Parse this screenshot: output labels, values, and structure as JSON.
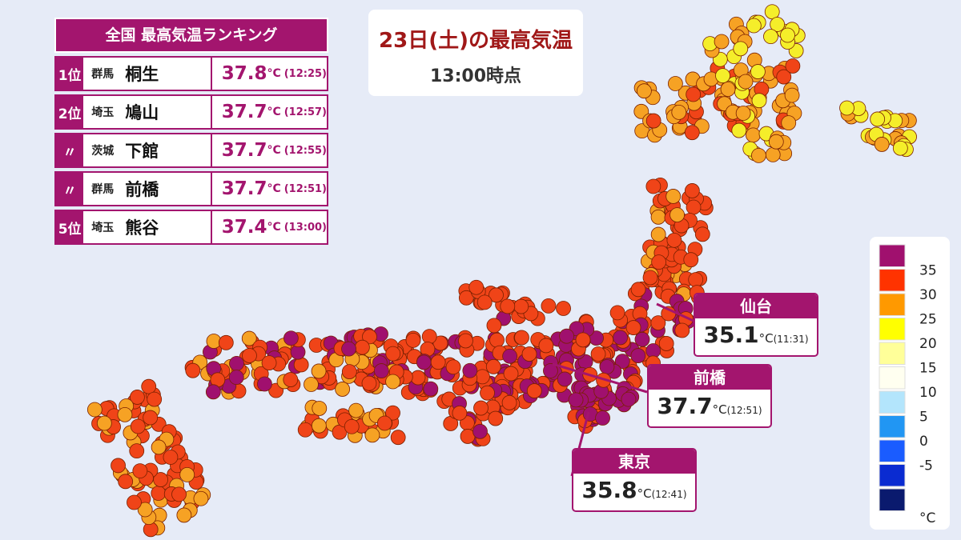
{
  "header": {
    "title": "23日(土)の最高気温",
    "subtitle": "13:00時点"
  },
  "ranking": {
    "title": "全国 最高気温ランキング",
    "rows": [
      {
        "rank": "1位",
        "pref": "群馬",
        "city": "桐生",
        "temp": 37.8,
        "unit": "°C",
        "time": "(12:25)"
      },
      {
        "rank": "2位",
        "pref": "埼玉",
        "city": "鳩山",
        "temp": 37.7,
        "unit": "°C",
        "time": "(12:57)"
      },
      {
        "rank": "〃",
        "pref": "茨城",
        "city": "下館",
        "temp": 37.7,
        "unit": "°C",
        "time": "(12:55)"
      },
      {
        "rank": "〃",
        "pref": "群馬",
        "city": "前橋",
        "temp": 37.7,
        "unit": "°C",
        "time": "(12:51)"
      },
      {
        "rank": "5位",
        "pref": "埼玉",
        "city": "熊谷",
        "temp": 37.4,
        "unit": "°C",
        "time": "(13:00)"
      }
    ]
  },
  "callouts": [
    {
      "city": "仙台",
      "temp": 35.1,
      "unit": "°C",
      "time": "(11:31)"
    },
    {
      "city": "前橋",
      "temp": 37.7,
      "unit": "°C",
      "time": "(12:51)"
    },
    {
      "city": "東京",
      "temp": 35.8,
      "unit": "°C",
      "time": "(12:41)"
    }
  ],
  "legend": {
    "labels": [
      35,
      30,
      25,
      20,
      15,
      10,
      5,
      0,
      -5
    ],
    "unit": "°C",
    "colors": [
      "#a0106e",
      "#ff3300",
      "#ff9900",
      "#ffff00",
      "#ffff99",
      "#fffff0",
      "#b3e5fc",
      "#2196f3",
      "#1a5cff",
      "#0a2bd1",
      "#0a1a6e"
    ]
  }
}
